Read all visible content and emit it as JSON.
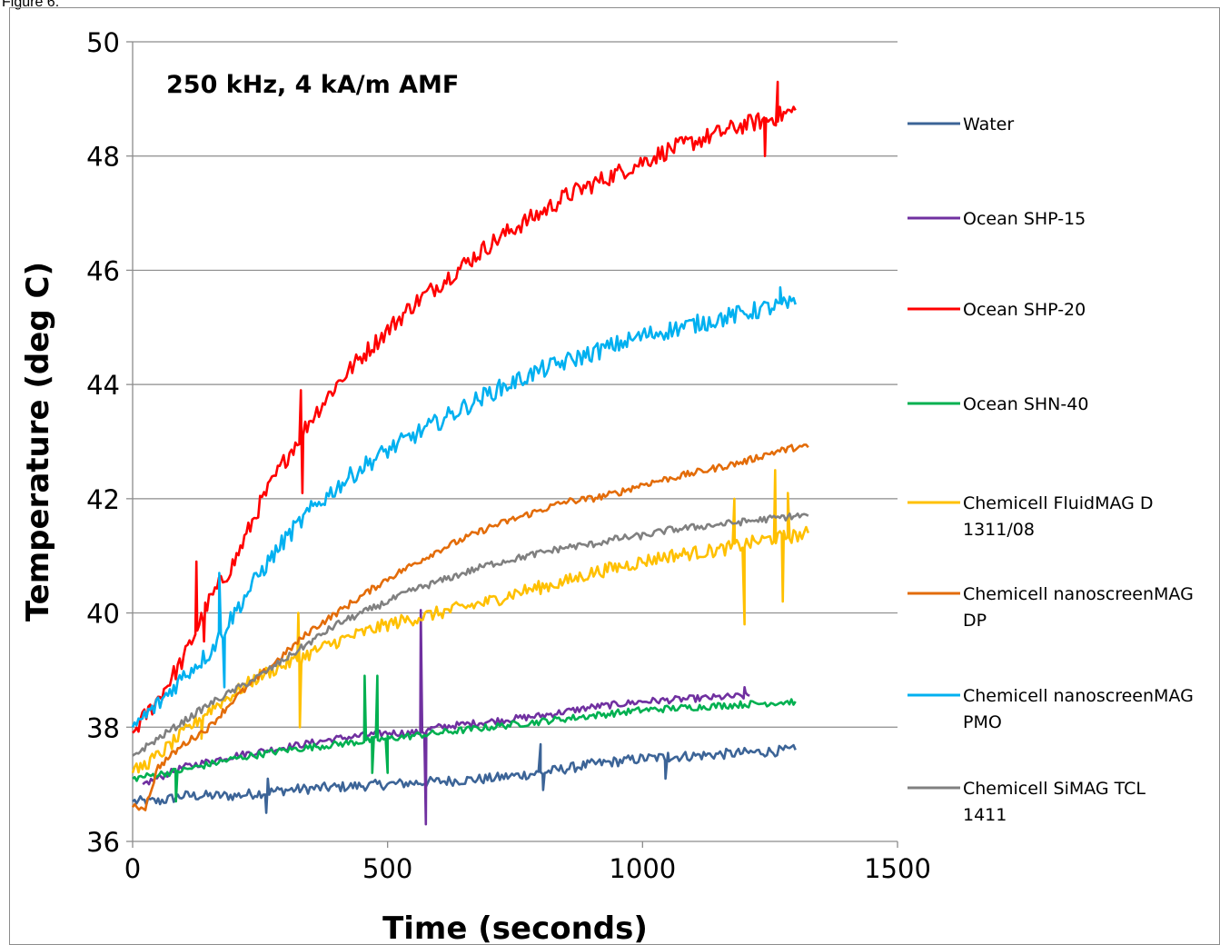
{
  "figure_label": "Figure 6.",
  "chart_data": {
    "type": "line",
    "title": "",
    "annotation": "250 kHz, 4 kA/m AMF",
    "xlabel": "Time (seconds)",
    "ylabel": "Temperature (deg C)",
    "xlim": [
      0,
      1500
    ],
    "ylim": [
      36,
      50
    ],
    "xticks": [
      0,
      500,
      1000,
      1500
    ],
    "yticks": [
      36,
      38,
      40,
      42,
      44,
      46,
      48,
      50
    ],
    "grid": "horizontal",
    "legend_position": "right",
    "series": [
      {
        "name": "Water",
        "color": "#3c6497",
        "line_points": [
          [
            0,
            36.7
          ],
          [
            50,
            36.7
          ],
          [
            100,
            36.8
          ],
          [
            200,
            36.8
          ],
          [
            300,
            36.9
          ],
          [
            400,
            36.95
          ],
          [
            500,
            37.0
          ],
          [
            600,
            37.05
          ],
          [
            700,
            37.1
          ],
          [
            800,
            37.2
          ],
          [
            900,
            37.35
          ],
          [
            1000,
            37.45
          ],
          [
            1100,
            37.5
          ],
          [
            1200,
            37.55
          ],
          [
            1300,
            37.6
          ]
        ],
        "spikes": [
          [
            262,
            36.5
          ],
          [
            265,
            37.1
          ],
          [
            800,
            37.7
          ],
          [
            805,
            36.9
          ],
          [
            1045,
            37.1
          ],
          [
            1050,
            37.55
          ]
        ]
      },
      {
        "name": "Ocean SHP-15",
        "color": "#7030a0",
        "line_points": [
          [
            20,
            37.0
          ],
          [
            100,
            37.3
          ],
          [
            200,
            37.5
          ],
          [
            300,
            37.65
          ],
          [
            400,
            37.8
          ],
          [
            500,
            37.9
          ],
          [
            560,
            37.9
          ],
          [
            600,
            38.0
          ],
          [
            700,
            38.1
          ],
          [
            800,
            38.2
          ],
          [
            900,
            38.35
          ],
          [
            1000,
            38.45
          ],
          [
            1100,
            38.5
          ],
          [
            1210,
            38.55
          ]
        ],
        "spikes": [
          [
            565,
            40.05
          ],
          [
            575,
            36.3
          ],
          [
            585,
            38.0
          ],
          [
            1200,
            38.7
          ]
        ]
      },
      {
        "name": "Ocean SHP-20",
        "color": "#ff0000",
        "line_points": [
          [
            0,
            37.9
          ],
          [
            50,
            38.5
          ],
          [
            100,
            39.2
          ],
          [
            150,
            40.2
          ],
          [
            200,
            40.9
          ],
          [
            250,
            41.9
          ],
          [
            300,
            42.7
          ],
          [
            350,
            43.4
          ],
          [
            400,
            44.0
          ],
          [
            450,
            44.5
          ],
          [
            500,
            44.95
          ],
          [
            550,
            45.4
          ],
          [
            600,
            45.75
          ],
          [
            650,
            46.1
          ],
          [
            700,
            46.45
          ],
          [
            750,
            46.75
          ],
          [
            800,
            47.0
          ],
          [
            850,
            47.3
          ],
          [
            900,
            47.5
          ],
          [
            950,
            47.7
          ],
          [
            1000,
            47.9
          ],
          [
            1050,
            48.1
          ],
          [
            1100,
            48.25
          ],
          [
            1150,
            48.4
          ],
          [
            1200,
            48.55
          ],
          [
            1250,
            48.65
          ],
          [
            1300,
            48.8
          ]
        ],
        "spikes": [
          [
            125,
            40.9
          ],
          [
            140,
            39.5
          ],
          [
            330,
            43.9
          ],
          [
            333,
            42.1
          ],
          [
            1240,
            48.0
          ],
          [
            1265,
            49.3
          ]
        ]
      },
      {
        "name": "Ocean SHN-40",
        "color": "#00b050",
        "line_points": [
          [
            0,
            37.1
          ],
          [
            100,
            37.25
          ],
          [
            200,
            37.45
          ],
          [
            300,
            37.6
          ],
          [
            400,
            37.7
          ],
          [
            450,
            37.75
          ],
          [
            500,
            37.8
          ],
          [
            600,
            37.9
          ],
          [
            700,
            38.0
          ],
          [
            800,
            38.1
          ],
          [
            900,
            38.2
          ],
          [
            1000,
            38.3
          ],
          [
            1100,
            38.35
          ],
          [
            1200,
            38.4
          ],
          [
            1300,
            38.45
          ]
        ],
        "spikes": [
          [
            85,
            36.7
          ],
          [
            455,
            38.9
          ],
          [
            470,
            37.2
          ],
          [
            480,
            38.9
          ],
          [
            500,
            37.2
          ]
        ]
      },
      {
        "name": "Chemicell FluidMAG D 1311/08",
        "color": "#ffc000",
        "line_points": [
          [
            0,
            37.2
          ],
          [
            50,
            37.5
          ],
          [
            100,
            37.9
          ],
          [
            150,
            38.3
          ],
          [
            200,
            38.6
          ],
          [
            250,
            38.9
          ],
          [
            300,
            39.1
          ],
          [
            350,
            39.3
          ],
          [
            400,
            39.5
          ],
          [
            450,
            39.65
          ],
          [
            500,
            39.8
          ],
          [
            550,
            39.9
          ],
          [
            600,
            40.0
          ],
          [
            650,
            40.1
          ],
          [
            700,
            40.2
          ],
          [
            750,
            40.35
          ],
          [
            800,
            40.45
          ],
          [
            850,
            40.55
          ],
          [
            900,
            40.7
          ],
          [
            950,
            40.8
          ],
          [
            1000,
            40.9
          ],
          [
            1050,
            41.0
          ],
          [
            1100,
            41.05
          ],
          [
            1150,
            41.1
          ],
          [
            1200,
            41.2
          ],
          [
            1250,
            41.3
          ],
          [
            1300,
            41.35
          ],
          [
            1325,
            41.4
          ]
        ],
        "spikes": [
          [
            135,
            37.8
          ],
          [
            140,
            38.2
          ],
          [
            325,
            40.0
          ],
          [
            328,
            38.0
          ],
          [
            1180,
            42.0
          ],
          [
            1200,
            39.8
          ],
          [
            1260,
            42.5
          ],
          [
            1275,
            40.2
          ],
          [
            1285,
            42.1
          ]
        ]
      },
      {
        "name": "Chemicell nanoscreenMAG DP",
        "color": "#e36c09",
        "line_points": [
          [
            0,
            36.6
          ],
          [
            25,
            36.6
          ],
          [
            50,
            37.3
          ],
          [
            100,
            37.7
          ],
          [
            150,
            38.0
          ],
          [
            200,
            38.5
          ],
          [
            250,
            38.9
          ],
          [
            300,
            39.3
          ],
          [
            350,
            39.7
          ],
          [
            400,
            40.0
          ],
          [
            450,
            40.3
          ],
          [
            500,
            40.6
          ],
          [
            550,
            40.85
          ],
          [
            600,
            41.1
          ],
          [
            650,
            41.3
          ],
          [
            700,
            41.5
          ],
          [
            750,
            41.65
          ],
          [
            800,
            41.8
          ],
          [
            850,
            41.95
          ],
          [
            900,
            42.0
          ],
          [
            950,
            42.1
          ],
          [
            1000,
            42.25
          ],
          [
            1050,
            42.35
          ],
          [
            1100,
            42.45
          ],
          [
            1150,
            42.55
          ],
          [
            1200,
            42.65
          ],
          [
            1250,
            42.8
          ],
          [
            1300,
            42.9
          ],
          [
            1325,
            42.9
          ]
        ],
        "spikes": []
      },
      {
        "name": "Chemicell nanoscreenMAG PMO",
        "color": "#00b0f0",
        "line_points": [
          [
            0,
            38.0
          ],
          [
            50,
            38.4
          ],
          [
            100,
            38.9
          ],
          [
            150,
            39.3
          ],
          [
            200,
            40.0
          ],
          [
            250,
            40.7
          ],
          [
            300,
            41.3
          ],
          [
            350,
            41.8
          ],
          [
            400,
            42.2
          ],
          [
            450,
            42.55
          ],
          [
            500,
            42.85
          ],
          [
            550,
            43.1
          ],
          [
            600,
            43.35
          ],
          [
            650,
            43.6
          ],
          [
            700,
            43.85
          ],
          [
            750,
            44.05
          ],
          [
            800,
            44.25
          ],
          [
            850,
            44.4
          ],
          [
            900,
            44.55
          ],
          [
            950,
            44.7
          ],
          [
            1000,
            44.85
          ],
          [
            1050,
            44.95
          ],
          [
            1100,
            45.05
          ],
          [
            1150,
            45.15
          ],
          [
            1200,
            45.25
          ],
          [
            1250,
            45.35
          ],
          [
            1300,
            45.4
          ]
        ],
        "spikes": [
          [
            170,
            40.7
          ],
          [
            180,
            38.7
          ],
          [
            1270,
            45.7
          ]
        ]
      },
      {
        "name": "Chemicell SiMAG TCL 1411",
        "color": "#808080",
        "line_points": [
          [
            0,
            37.5
          ],
          [
            50,
            37.8
          ],
          [
            100,
            38.1
          ],
          [
            150,
            38.4
          ],
          [
            200,
            38.65
          ],
          [
            250,
            38.9
          ],
          [
            300,
            39.2
          ],
          [
            350,
            39.5
          ],
          [
            400,
            39.8
          ],
          [
            450,
            40.0
          ],
          [
            500,
            40.2
          ],
          [
            550,
            40.4
          ],
          [
            600,
            40.55
          ],
          [
            650,
            40.7
          ],
          [
            700,
            40.85
          ],
          [
            750,
            40.95
          ],
          [
            800,
            41.05
          ],
          [
            850,
            41.15
          ],
          [
            900,
            41.2
          ],
          [
            950,
            41.3
          ],
          [
            1000,
            41.35
          ],
          [
            1050,
            41.45
          ],
          [
            1100,
            41.5
          ],
          [
            1150,
            41.55
          ],
          [
            1200,
            41.6
          ],
          [
            1250,
            41.65
          ],
          [
            1300,
            41.7
          ],
          [
            1325,
            41.7
          ]
        ],
        "spikes": []
      }
    ]
  }
}
